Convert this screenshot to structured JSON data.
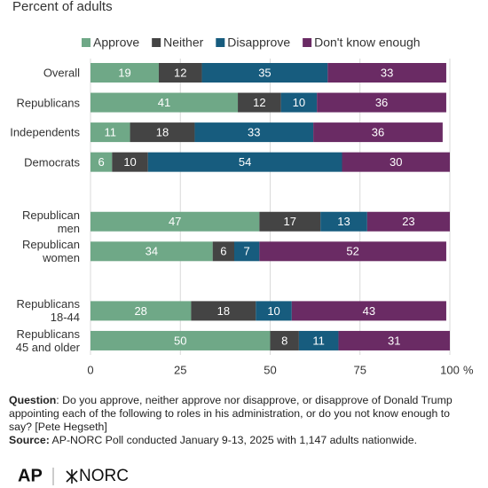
{
  "chart_data": {
    "type": "stacked-bar-horizontal",
    "title": "Percent of adults",
    "categories": [
      "Overall",
      "Republicans",
      "Independents",
      "Democrats",
      null,
      "Republican men",
      "Republican women",
      null,
      "Republicans 18-44",
      "Republicans 45 and older"
    ],
    "series": [
      {
        "name": "Approve",
        "color": "#6fa887",
        "values": [
          19,
          41,
          11,
          6,
          null,
          47,
          34,
          null,
          28,
          50
        ]
      },
      {
        "name": "Neither",
        "color": "#444444",
        "values": [
          12,
          12,
          18,
          10,
          null,
          17,
          6,
          null,
          18,
          8
        ]
      },
      {
        "name": "Disapprove",
        "color": "#175c7e",
        "values": [
          35,
          10,
          33,
          54,
          null,
          13,
          7,
          null,
          10,
          11
        ]
      },
      {
        "name": "Don't know enough",
        "color": "#6a2b64",
        "values": [
          33,
          36,
          36,
          30,
          null,
          23,
          52,
          null,
          43,
          31
        ]
      }
    ],
    "xlim": [
      0,
      100
    ],
    "xticks": [
      0,
      25,
      50,
      75,
      100
    ],
    "xlabel": "%",
    "grid": true,
    "legend": "top"
  },
  "footer": {
    "question_label": "Question",
    "question": ": Do you approve, neither approve nor disapprove, or disapprove of Donald Trump appointing each of the following to roles in his administration, or do you not know enough to say? [Pete Hegseth]",
    "source_label": "Source:",
    "source": " AP-NORC Poll conducted January 9-13, 2025 with 1,147 adults nationwide.",
    "logo_left": "AP",
    "logo_right": "NORC"
  }
}
